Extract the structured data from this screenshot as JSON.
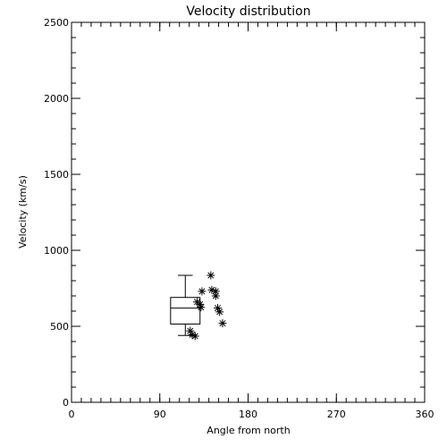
{
  "chart_data": {
    "type": "box-scatter",
    "title": "Velocity distribution",
    "xlabel": "Angle from north",
    "ylabel": "Velocity (km/s)",
    "xlim": [
      0,
      360
    ],
    "ylim": [
      0,
      2500
    ],
    "x_ticks": [
      0,
      90,
      180,
      270,
      360
    ],
    "x_tick_labels": [
      "0",
      "90",
      "180",
      "270",
      "360"
    ],
    "y_ticks": [
      0,
      500,
      1000,
      1500,
      2000,
      2500
    ],
    "y_tick_labels": [
      "0",
      "500",
      "1000",
      "1500",
      "2000",
      "2500"
    ],
    "x_minor_step": 10,
    "y_minor_step": 100,
    "grid": false,
    "box": {
      "x_center": 116,
      "x_halfwidth": 15,
      "whisker_low": 440,
      "q1": 515,
      "median": 620,
      "q3": 690,
      "whisker_high": 835
    },
    "points": [
      {
        "x": 142,
        "y": 835
      },
      {
        "x": 143,
        "y": 740
      },
      {
        "x": 133,
        "y": 730
      },
      {
        "x": 147,
        "y": 730
      },
      {
        "x": 147,
        "y": 700
      },
      {
        "x": 128,
        "y": 660
      },
      {
        "x": 131,
        "y": 645
      },
      {
        "x": 132,
        "y": 625
      },
      {
        "x": 149,
        "y": 620
      },
      {
        "x": 151,
        "y": 595
      },
      {
        "x": 154,
        "y": 520
      },
      {
        "x": 121,
        "y": 470
      },
      {
        "x": 123,
        "y": 445
      },
      {
        "x": 126,
        "y": 435
      }
    ]
  }
}
